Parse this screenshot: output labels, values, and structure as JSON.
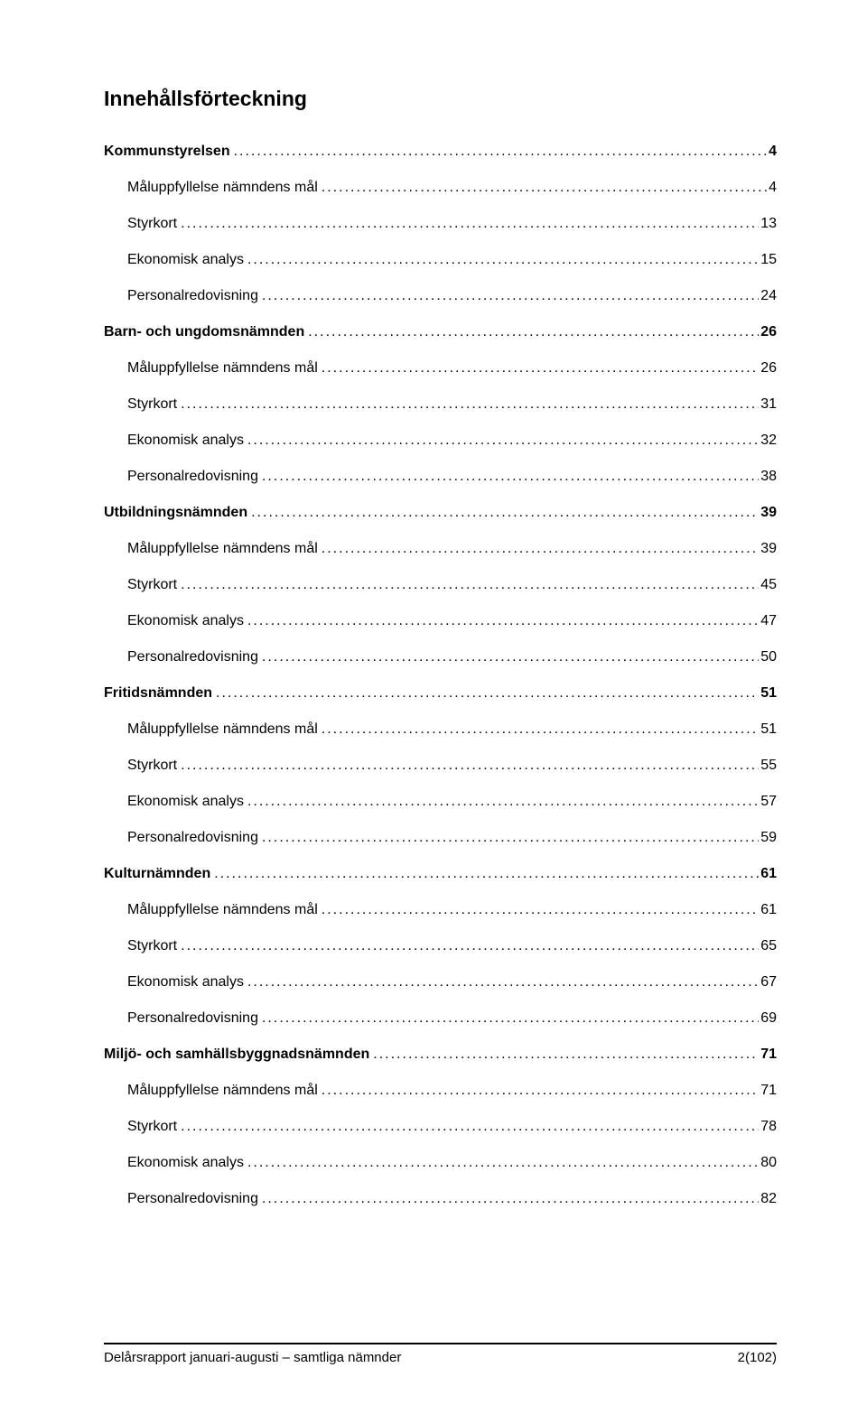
{
  "toc_title": "Innehållsförteckning",
  "entries": [
    {
      "type": "section",
      "label": "Kommunstyrelsen",
      "page": "4"
    },
    {
      "type": "sub",
      "label": "Måluppfyllelse nämndens mål",
      "page": "4"
    },
    {
      "type": "sub",
      "label": "Styrkort",
      "page": "13"
    },
    {
      "type": "sub",
      "label": "Ekonomisk analys",
      "page": "15"
    },
    {
      "type": "sub",
      "label": "Personalredovisning",
      "page": "24"
    },
    {
      "type": "section",
      "label": "Barn- och ungdomsnämnden",
      "page": "26"
    },
    {
      "type": "sub",
      "label": "Måluppfyllelse nämndens mål",
      "page": "26"
    },
    {
      "type": "sub",
      "label": "Styrkort",
      "page": "31"
    },
    {
      "type": "sub",
      "label": "Ekonomisk analys",
      "page": "32"
    },
    {
      "type": "sub",
      "label": "Personalredovisning",
      "page": "38"
    },
    {
      "type": "section",
      "label": "Utbildningsnämnden",
      "page": "39"
    },
    {
      "type": "sub",
      "label": "Måluppfyllelse nämndens mål",
      "page": "39"
    },
    {
      "type": "sub",
      "label": "Styrkort",
      "page": "45"
    },
    {
      "type": "sub",
      "label": "Ekonomisk analys",
      "page": "47"
    },
    {
      "type": "sub",
      "label": "Personalredovisning",
      "page": "50"
    },
    {
      "type": "section",
      "label": "Fritidsnämnden",
      "page": "51"
    },
    {
      "type": "sub",
      "label": "Måluppfyllelse nämndens mål",
      "page": "51"
    },
    {
      "type": "sub",
      "label": "Styrkort",
      "page": "55"
    },
    {
      "type": "sub",
      "label": "Ekonomisk analys",
      "page": "57"
    },
    {
      "type": "sub",
      "label": "Personalredovisning",
      "page": "59"
    },
    {
      "type": "section",
      "label": "Kulturnämnden",
      "page": "61"
    },
    {
      "type": "sub",
      "label": "Måluppfyllelse nämndens mål",
      "page": "61"
    },
    {
      "type": "sub",
      "label": "Styrkort",
      "page": "65"
    },
    {
      "type": "sub",
      "label": "Ekonomisk analys",
      "page": "67"
    },
    {
      "type": "sub",
      "label": "Personalredovisning",
      "page": "69"
    },
    {
      "type": "section",
      "label": "Miljö- och samhällsbyggnadsnämnden",
      "page": "71"
    },
    {
      "type": "sub",
      "label": "Måluppfyllelse nämndens mål",
      "page": "71"
    },
    {
      "type": "sub",
      "label": "Styrkort",
      "page": "78"
    },
    {
      "type": "sub",
      "label": "Ekonomisk analys",
      "page": "80"
    },
    {
      "type": "sub",
      "label": "Personalredovisning",
      "page": "82"
    }
  ],
  "footer_left": "Delårsrapport januari-augusti – samtliga nämnder",
  "footer_right": "2(102)",
  "leader_fill": ".................................................................................................................................................................................................."
}
